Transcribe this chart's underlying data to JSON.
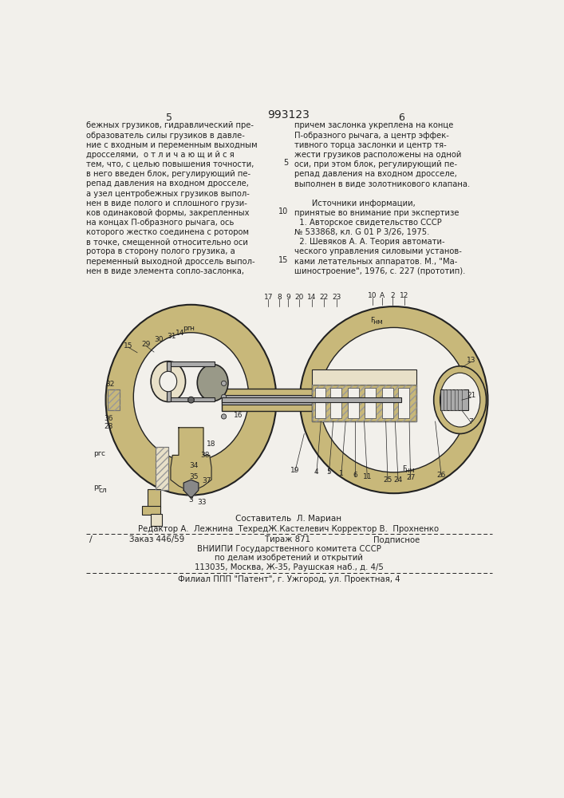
{
  "bg_color": "#f2f0eb",
  "patent_number": "993123",
  "left_col_text": [
    "бежных грузиков, гидравлический пре-",
    "образователь силы грузиков в давле-",
    "ние с входным и переменным выходным",
    "дросселями,  о т л и ч а ю щ и й с я",
    "тем, что, с целью повышения точности,",
    "в него введен блок, регулирующий пе-",
    "репад давления на входном дросселе,",
    "а узел центробежных грузиков выпол-",
    "нен в виде полого и сплошного грузи-",
    "ков одинаковой формы, закрепленных",
    "на концах П-образного рычага, ось",
    "которого жестко соединена с ротором",
    "в точке, смещенной относительно оси",
    "ротора в сторону полого грузика, а",
    "переменный выходной дроссель выпол-",
    "нен в виде элемента сопло-заслонка,"
  ],
  "right_col_text": [
    "причем заслонка укреплена на конце",
    "П-образного рычага, а центр эффек-",
    "тивного торца заслонки и центр тя-",
    "жести грузиков расположены на одной",
    "оси, при этом блок, регулирующий пе-",
    "репад давления на входном дросселе,",
    "выполнен в виде золотникового клапана.",
    "",
    "       Источники информации,",
    "принятые во внимание при экспертизе",
    "  1. Авторское свидетельство СССР",
    "№ 533868, кл. G 01 P 3/26, 1975.",
    "  2. Шевяков А. А. Теория автомати-",
    "ческого управления силовыми установ-",
    "ками летательных аппаратов. М., \"Ма-",
    "шиностроение\", 1976, с. 227 (прототип)."
  ],
  "composer_line": "Составитель  Л. Мариан",
  "editor_line": "Редактор А.  Лежнина  ТехредЖ.Кастелевич Корректор В.  Прохненко",
  "order_text": [
    "Заказ 446/59",
    "Тираж 871",
    "Подписное"
  ],
  "vniip_lines": [
    "ВНИИПИ Государственного комитета СССР",
    "по делам изобретений и открытий",
    "113035, Москва, Ж-35, Раушская наб., д. 4/5"
  ],
  "filial_line": "Филиал ППП \"Патент\", г. Ужгород, ул. Проектная, 4",
  "hatch_color": "#888888",
  "line_color": "#222222",
  "fill_color_dark": "#c8b87a",
  "fill_color_light": "#e8e0c8",
  "fill_white": "#f2f0eb"
}
